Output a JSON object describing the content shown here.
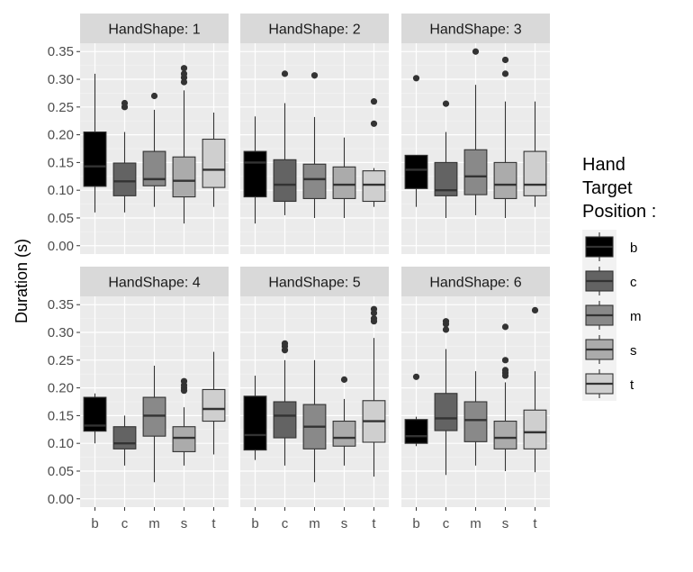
{
  "chart_data": {
    "type": "boxplot",
    "facet_label_prefix": "HandShape: ",
    "ylabel": "Duration (s)",
    "xlabel": "",
    "ylim": [
      -0.015,
      0.365
    ],
    "yticks": [
      "0.00",
      "0.05",
      "0.10",
      "0.15",
      "0.20",
      "0.25",
      "0.30",
      "0.35"
    ],
    "ytick_values": [
      0.0,
      0.05,
      0.1,
      0.15,
      0.2,
      0.25,
      0.3,
      0.35
    ],
    "categories": [
      "b",
      "c",
      "m",
      "s",
      "t"
    ],
    "fill_colors": {
      "b": "#000000",
      "c": "#636363",
      "m": "#898989",
      "s": "#ababab",
      "t": "#cfcfcf"
    },
    "grid": true,
    "legend": {
      "title_lines": [
        "Hand",
        "Target",
        "Position :"
      ],
      "position": "right",
      "items": [
        "b",
        "c",
        "m",
        "s",
        "t"
      ]
    },
    "panels": [
      {
        "facet": "1",
        "boxes": [
          {
            "cat": "b",
            "min": 0.06,
            "q1": 0.107,
            "median": 0.143,
            "q3": 0.205,
            "max": 0.31,
            "outliers": []
          },
          {
            "cat": "c",
            "min": 0.06,
            "q1": 0.09,
            "median": 0.116,
            "q3": 0.149,
            "max": 0.205,
            "outliers": [
              0.25,
              0.257
            ]
          },
          {
            "cat": "m",
            "min": 0.07,
            "q1": 0.108,
            "median": 0.12,
            "q3": 0.17,
            "max": 0.245,
            "outliers": [
              0.27
            ]
          },
          {
            "cat": "s",
            "min": 0.04,
            "q1": 0.088,
            "median": 0.117,
            "q3": 0.16,
            "max": 0.28,
            "outliers": [
              0.295,
              0.303,
              0.31,
              0.32
            ]
          },
          {
            "cat": "t",
            "min": 0.07,
            "q1": 0.105,
            "median": 0.137,
            "q3": 0.192,
            "max": 0.24,
            "outliers": []
          }
        ]
      },
      {
        "facet": "2",
        "boxes": [
          {
            "cat": "b",
            "min": 0.04,
            "q1": 0.088,
            "median": 0.15,
            "q3": 0.17,
            "max": 0.233,
            "outliers": []
          },
          {
            "cat": "c",
            "min": 0.055,
            "q1": 0.08,
            "median": 0.11,
            "q3": 0.155,
            "max": 0.257,
            "outliers": [
              0.31
            ]
          },
          {
            "cat": "m",
            "min": 0.05,
            "q1": 0.085,
            "median": 0.12,
            "q3": 0.147,
            "max": 0.232,
            "outliers": [
              0.307
            ]
          },
          {
            "cat": "s",
            "min": 0.05,
            "q1": 0.085,
            "median": 0.11,
            "q3": 0.142,
            "max": 0.195,
            "outliers": []
          },
          {
            "cat": "t",
            "min": 0.07,
            "q1": 0.08,
            "median": 0.11,
            "q3": 0.135,
            "max": 0.14,
            "outliers": [
              0.22,
              0.26
            ]
          }
        ]
      },
      {
        "facet": "3",
        "boxes": [
          {
            "cat": "b",
            "min": 0.07,
            "q1": 0.103,
            "median": 0.137,
            "q3": 0.163,
            "max": 0.163,
            "outliers": [
              0.302
            ]
          },
          {
            "cat": "c",
            "min": 0.05,
            "q1": 0.09,
            "median": 0.1,
            "q3": 0.15,
            "max": 0.205,
            "outliers": [
              0.256
            ]
          },
          {
            "cat": "m",
            "min": 0.055,
            "q1": 0.092,
            "median": 0.125,
            "q3": 0.173,
            "max": 0.29,
            "outliers": [
              0.35
            ]
          },
          {
            "cat": "s",
            "min": 0.05,
            "q1": 0.085,
            "median": 0.11,
            "q3": 0.15,
            "max": 0.26,
            "outliers": [
              0.31,
              0.335
            ]
          },
          {
            "cat": "t",
            "min": 0.07,
            "q1": 0.09,
            "median": 0.11,
            "q3": 0.17,
            "max": 0.26,
            "outliers": []
          }
        ]
      },
      {
        "facet": "4",
        "boxes": [
          {
            "cat": "b",
            "min": 0.1,
            "q1": 0.122,
            "median": 0.132,
            "q3": 0.183,
            "max": 0.19,
            "outliers": []
          },
          {
            "cat": "c",
            "min": 0.06,
            "q1": 0.09,
            "median": 0.1,
            "q3": 0.13,
            "max": 0.15,
            "outliers": []
          },
          {
            "cat": "m",
            "min": 0.03,
            "q1": 0.113,
            "median": 0.15,
            "q3": 0.183,
            "max": 0.24,
            "outliers": []
          },
          {
            "cat": "s",
            "min": 0.06,
            "q1": 0.085,
            "median": 0.11,
            "q3": 0.13,
            "max": 0.165,
            "outliers": [
              0.195,
              0.2,
              0.205,
              0.212
            ]
          },
          {
            "cat": "t",
            "min": 0.08,
            "q1": 0.14,
            "median": 0.162,
            "q3": 0.197,
            "max": 0.265,
            "outliers": []
          }
        ]
      },
      {
        "facet": "5",
        "boxes": [
          {
            "cat": "b",
            "min": 0.07,
            "q1": 0.088,
            "median": 0.115,
            "q3": 0.185,
            "max": 0.222,
            "outliers": []
          },
          {
            "cat": "c",
            "min": 0.06,
            "q1": 0.11,
            "median": 0.15,
            "q3": 0.175,
            "max": 0.25,
            "outliers": [
              0.268,
              0.275,
              0.28
            ]
          },
          {
            "cat": "m",
            "min": 0.03,
            "q1": 0.09,
            "median": 0.13,
            "q3": 0.17,
            "max": 0.25,
            "outliers": []
          },
          {
            "cat": "s",
            "min": 0.06,
            "q1": 0.095,
            "median": 0.11,
            "q3": 0.14,
            "max": 0.18,
            "outliers": [
              0.215
            ]
          },
          {
            "cat": "t",
            "min": 0.04,
            "q1": 0.102,
            "median": 0.14,
            "q3": 0.177,
            "max": 0.29,
            "outliers": [
              0.32,
              0.325,
              0.335,
              0.342
            ]
          }
        ]
      },
      {
        "facet": "6",
        "boxes": [
          {
            "cat": "b",
            "min": 0.095,
            "q1": 0.1,
            "median": 0.113,
            "q3": 0.143,
            "max": 0.148,
            "outliers": [
              0.22
            ]
          },
          {
            "cat": "c",
            "min": 0.043,
            "q1": 0.123,
            "median": 0.145,
            "q3": 0.19,
            "max": 0.27,
            "outliers": [
              0.305,
              0.315,
              0.32
            ]
          },
          {
            "cat": "m",
            "min": 0.06,
            "q1": 0.103,
            "median": 0.142,
            "q3": 0.175,
            "max": 0.23,
            "outliers": []
          },
          {
            "cat": "s",
            "min": 0.05,
            "q1": 0.09,
            "median": 0.11,
            "q3": 0.14,
            "max": 0.21,
            "outliers": [
              0.222,
              0.227,
              0.232,
              0.25,
              0.31
            ]
          },
          {
            "cat": "t",
            "min": 0.048,
            "q1": 0.09,
            "median": 0.12,
            "q3": 0.16,
            "max": 0.23,
            "outliers": [
              0.34
            ]
          }
        ]
      }
    ]
  }
}
